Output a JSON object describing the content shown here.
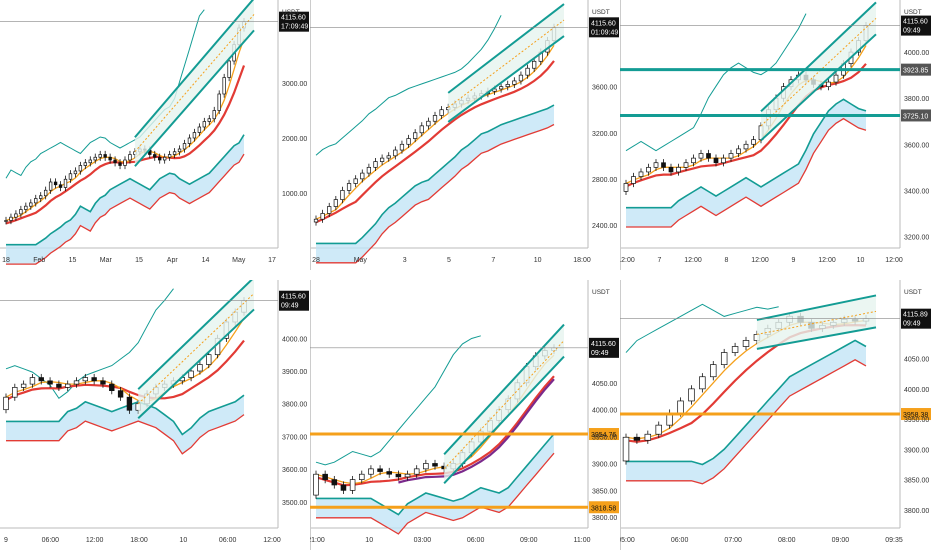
{
  "colors": {
    "teal": "#139c94",
    "red": "#e23b35",
    "orange": "#f5a01b",
    "purple": "#7b2a8c",
    "cloud": "#bfe3f5",
    "cloud_red": "#f7c7c7",
    "channel_fill": "#e6f4ef",
    "candle_up": "#ffffff",
    "candle_down": "#111111",
    "badge_dark": "#111111",
    "badge_gray": "#555555",
    "badge_orange": "#f5a01b"
  },
  "chart_data": [
    {
      "type": "candlestick",
      "currency": "USDT",
      "ylim": [
        0,
        4400
      ],
      "y_ticks": [
        "3000.00",
        "2000.00",
        "1000.00"
      ],
      "y_tick_values": [
        3000,
        2000,
        1000
      ],
      "x_ticks": [
        "18",
        "Feb",
        "15",
        "Mar",
        "15",
        "Apr",
        "14",
        "May",
        "17"
      ],
      "price_label": "4115.60",
      "timer_label": "17:09:49",
      "close_series": [
        500,
        560,
        620,
        700,
        760,
        820,
        900,
        950,
        1050,
        1200,
        1150,
        1100,
        1250,
        1350,
        1400,
        1500,
        1550,
        1600,
        1650,
        1700,
        1650,
        1600,
        1550,
        1500,
        1600,
        1700,
        1750,
        1800,
        1780,
        1700,
        1650,
        1600,
        1650,
        1700,
        1750,
        1800,
        1900,
        2000,
        2100,
        2200,
        2300,
        2350,
        2500,
        2800,
        3100,
        3400,
        3700,
        4000,
        4115
      ]
    },
    {
      "type": "candlestick",
      "currency": "USDT",
      "ylim": [
        2200,
        4300
      ],
      "y_ticks": [
        "3600.00",
        "3200.00",
        "2800.00",
        "2400.00"
      ],
      "y_tick_values": [
        3600,
        3200,
        2800,
        2400
      ],
      "x_ticks": [
        "28",
        "May",
        "3",
        "5",
        "7",
        "10",
        "18:00"
      ],
      "price_label": "4115.60",
      "timer_label": "01:09:49",
      "close_series": [
        2450,
        2500,
        2560,
        2620,
        2700,
        2760,
        2800,
        2850,
        2900,
        2950,
        2980,
        3000,
        3050,
        3100,
        3150,
        3200,
        3260,
        3300,
        3350,
        3400,
        3420,
        3450,
        3480,
        3500,
        3520,
        3540,
        3560,
        3580,
        3600,
        3620,
        3650,
        3700,
        3760,
        3820,
        3900,
        4000,
        4115
      ]
    },
    {
      "type": "candlestick",
      "currency": "USDT",
      "ylim": [
        3150,
        4200
      ],
      "y_ticks": [
        "4000.00",
        "3800.00",
        "3600.00",
        "3400.00",
        "3200.00"
      ],
      "y_tick_values": [
        4000,
        3800,
        3600,
        3400,
        3200
      ],
      "x_ticks": [
        "12:00",
        "7",
        "12:00",
        "8",
        "12:00",
        "9",
        "12:00",
        "10",
        "12:00"
      ],
      "price_label": "4115.60",
      "timer_label": "09:49",
      "level_labels": [
        "3923.85",
        "3725.10"
      ],
      "level_values": [
        3923.85,
        3725.1
      ],
      "close_series": [
        3430,
        3460,
        3480,
        3500,
        3520,
        3500,
        3480,
        3500,
        3520,
        3540,
        3560,
        3540,
        3520,
        3540,
        3560,
        3580,
        3600,
        3620,
        3680,
        3750,
        3800,
        3850,
        3880,
        3900,
        3880,
        3860,
        3850,
        3870,
        3900,
        3950,
        4000,
        4050,
        4115
      ]
    },
    {
      "type": "candlestick",
      "currency": "",
      "ylim": [
        3420,
        4160
      ],
      "y_ticks": [
        "4000.00",
        "3900.00",
        "3800.00",
        "3700.00",
        "3600.00",
        "3500.00"
      ],
      "y_tick_values": [
        4000,
        3900,
        3800,
        3700,
        3600,
        3500
      ],
      "x_ticks": [
        "9",
        "06:00",
        "12:00",
        "18:00",
        "10",
        "06:00",
        "12:00"
      ],
      "price_label": "4115.60",
      "timer_label": "09:49",
      "close_series": [
        3820,
        3850,
        3860,
        3880,
        3870,
        3860,
        3850,
        3860,
        3870,
        3880,
        3870,
        3860,
        3840,
        3820,
        3780,
        3800,
        3830,
        3850,
        3860,
        3870,
        3880,
        3900,
        3920,
        3950,
        4000,
        4050,
        4080,
        4115
      ]
    },
    {
      "type": "candlestick",
      "currency": "USDT",
      "ylim": [
        3780,
        4230
      ],
      "y_ticks": [
        "4050.00",
        "4000.00",
        "3950.00",
        "3900.00",
        "3850.00",
        "3800.00"
      ],
      "y_tick_values": [
        4050,
        4000,
        3950,
        3900,
        3850,
        3800
      ],
      "x_ticks": [
        "21:00",
        "10",
        "03:00",
        "06:00",
        "09:00",
        "11:00"
      ],
      "price_label": "4115.60",
      "timer_label": "09:49",
      "level_labels": [
        "3954.76",
        "3818.58"
      ],
      "level_values": [
        3954.76,
        3818.58
      ],
      "close_series": [
        3880,
        3870,
        3860,
        3850,
        3870,
        3880,
        3890,
        3885,
        3880,
        3875,
        3880,
        3890,
        3900,
        3895,
        3890,
        3900,
        3920,
        3940,
        3960,
        3980,
        4000,
        4020,
        4050,
        4080,
        4100,
        4110,
        4115
      ]
    },
    {
      "type": "candlestick",
      "currency": "USDT",
      "ylim": [
        3770,
        4170
      ],
      "y_ticks": [
        "4050.00",
        "4000.00",
        "3950.00",
        "3900.00",
        "3850.00",
        "3800.00"
      ],
      "y_tick_values": [
        4050,
        4000,
        3950,
        3900,
        3850,
        3800
      ],
      "x_ticks": [
        "05:00",
        "06:00",
        "07:00",
        "08:00",
        "09:00",
        "09:35"
      ],
      "price_label": "4115.89",
      "timer_label": "09:49",
      "level_labels": [
        "3958.38"
      ],
      "level_values": [
        3958.38
      ],
      "close_series": [
        3920,
        3915,
        3925,
        3940,
        3960,
        3980,
        4000,
        4020,
        4040,
        4060,
        4070,
        4080,
        4090,
        4100,
        4110,
        4120,
        4110,
        4100,
        4105,
        4110,
        4115,
        4112,
        4116
      ]
    }
  ]
}
